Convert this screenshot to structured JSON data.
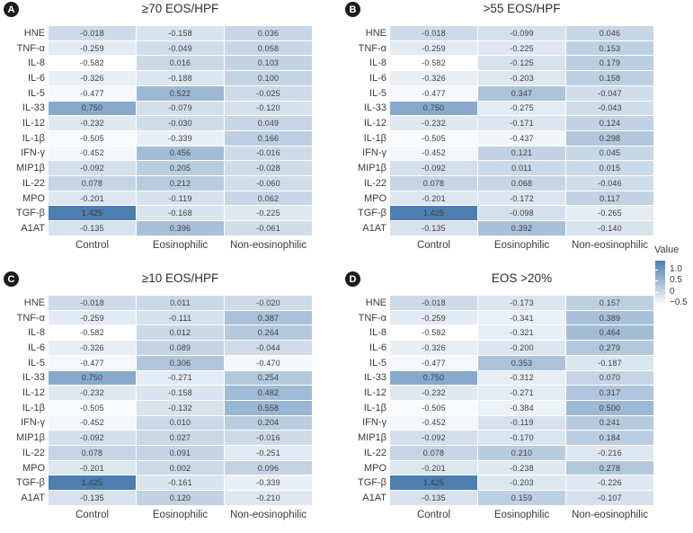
{
  "chart_data": {
    "type": "heatmap",
    "description": "Four correlation heatmaps of inflammatory markers across patient groups at different eosinophil cutoffs",
    "rows": [
      "HNE",
      "TNF-α",
      "IL-8",
      "IL-6",
      "IL-5",
      "IL-33",
      "IL-12",
      "IL-1β",
      "IFN-γ",
      "MIP1β",
      "IL-22",
      "MPO",
      "TGF-β",
      "A1AT"
    ],
    "columns": [
      "Control",
      "Eosinophilic",
      "Non-eosinophilic"
    ],
    "colormap": {
      "min_value": -0.582,
      "max_value": 1.425,
      "min_color": "#ffffff",
      "max_color": "#4c7eb0"
    },
    "legend": {
      "title": "Value",
      "ticks": [
        "1.0",
        "0.5",
        "0",
        "−0.5"
      ],
      "tick_values": [
        1.0,
        0.5,
        0,
        -0.5
      ]
    },
    "panels": [
      {
        "id": "A",
        "title": "≥70 EOS/HPF",
        "values": [
          [
            -0.018,
            -0.158,
            0.036
          ],
          [
            -0.259,
            -0.049,
            0.058
          ],
          [
            -0.582,
            0.016,
            0.103
          ],
          [
            -0.326,
            -0.188,
            0.1
          ],
          [
            -0.477,
            0.522,
            -0.025
          ],
          [
            0.75,
            -0.079,
            -0.12
          ],
          [
            -0.232,
            -0.03,
            0.049
          ],
          [
            -0.505,
            -0.339,
            0.166
          ],
          [
            -0.452,
            0.456,
            -0.016
          ],
          [
            -0.092,
            0.205,
            -0.028
          ],
          [
            0.078,
            0.212,
            -0.06
          ],
          [
            -0.201,
            -0.119,
            0.062
          ],
          [
            1.425,
            -0.168,
            -0.225
          ],
          [
            -0.135,
            0.396,
            -0.061
          ]
        ]
      },
      {
        "id": "B",
        "title": ">55 EOS/HPF",
        "values": [
          [
            -0.018,
            -0.099,
            0.046
          ],
          [
            -0.259,
            -0.225,
            0.153
          ],
          [
            -0.582,
            -0.125,
            0.179
          ],
          [
            -0.326,
            -0.203,
            0.158
          ],
          [
            -0.477,
            0.347,
            -0.047
          ],
          [
            0.75,
            -0.275,
            -0.043
          ],
          [
            -0.232,
            -0.171,
            0.124
          ],
          [
            -0.505,
            -0.437,
            0.298
          ],
          [
            -0.452,
            0.121,
            0.045
          ],
          [
            -0.092,
            0.011,
            0.015
          ],
          [
            0.078,
            0.068,
            -0.046
          ],
          [
            -0.201,
            -0.172,
            0.117
          ],
          [
            1.425,
            -0.098,
            -0.265
          ],
          [
            -0.135,
            0.392,
            -0.14
          ]
        ]
      },
      {
        "id": "C",
        "title": "≥10 EOS/HPF",
        "values": [
          [
            -0.018,
            0.011,
            -0.02
          ],
          [
            -0.259,
            -0.111,
            0.387
          ],
          [
            -0.582,
            0.012,
            0.264
          ],
          [
            -0.326,
            0.089,
            -0.044
          ],
          [
            -0.477,
            0.306,
            -0.47
          ],
          [
            0.75,
            -0.271,
            0.254
          ],
          [
            -0.232,
            -0.158,
            0.482
          ],
          [
            -0.505,
            -0.132,
            0.558
          ],
          [
            -0.452,
            0.01,
            0.204
          ],
          [
            -0.092,
            0.027,
            -0.016
          ],
          [
            0.078,
            0.091,
            -0.251
          ],
          [
            -0.201,
            0.002,
            0.096
          ],
          [
            1.425,
            -0.161,
            -0.339
          ],
          [
            -0.135,
            0.12,
            -0.21
          ]
        ]
      },
      {
        "id": "D",
        "title": "EOS >20%",
        "values": [
          [
            -0.018,
            -0.173,
            0.157
          ],
          [
            -0.259,
            -0.341,
            0.389
          ],
          [
            -0.582,
            -0.321,
            0.464
          ],
          [
            -0.326,
            -0.2,
            0.279
          ],
          [
            -0.477,
            0.353,
            -0.187
          ],
          [
            0.75,
            -0.312,
            0.07
          ],
          [
            -0.232,
            -0.271,
            0.317
          ],
          [
            -0.505,
            -0.384,
            0.5
          ],
          [
            -0.452,
            -0.119,
            0.241
          ],
          [
            -0.092,
            -0.17,
            0.184
          ],
          [
            0.078,
            0.21,
            -0.216
          ],
          [
            -0.201,
            -0.238,
            0.278
          ],
          [
            1.425,
            -0.203,
            -0.226
          ],
          [
            -0.135,
            0.159,
            -0.107
          ]
        ]
      }
    ]
  }
}
